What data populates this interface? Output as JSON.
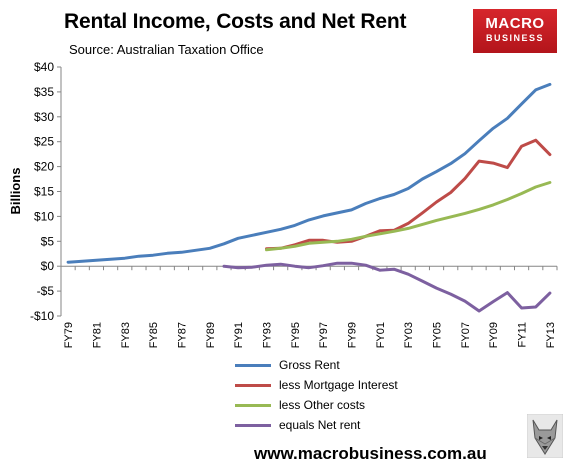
{
  "header": {
    "title": "Rental Income, Costs and Net Rent",
    "subtitle": "Source: Australian Taxation Office"
  },
  "logo": {
    "line1": "MACRO",
    "line2": "BUSINESS"
  },
  "footer": {
    "website": "www.macrobusiness.com.au"
  },
  "chart_data": {
    "type": "line",
    "ylabel": "Billions",
    "xlabel": "",
    "ylim": [
      -10,
      40
    ],
    "yticks": [
      -10,
      -5,
      0,
      5,
      10,
      15,
      20,
      25,
      30,
      35,
      40
    ],
    "ytick_labels": [
      "-$10",
      "-$5",
      "$0",
      "$5",
      "$10",
      "$15",
      "$20",
      "$25",
      "$30",
      "$35",
      "$40"
    ],
    "categories": [
      "FY79",
      "FY80",
      "FY81",
      "FY82",
      "FY83",
      "FY84",
      "FY85",
      "FY86",
      "FY87",
      "FY88",
      "FY89",
      "FY90",
      "FY91",
      "FY92",
      "FY93",
      "FY94",
      "FY95",
      "FY96",
      "FY97",
      "FY98",
      "FY99",
      "FY00",
      "FY01",
      "FY02",
      "FY03",
      "FY04",
      "FY05",
      "FY06",
      "FY07",
      "FY08",
      "FY09",
      "FY10",
      "FY11",
      "FY12",
      "FY13"
    ],
    "tick_labels_shown": [
      "FY79",
      "FY81",
      "FY83",
      "FY85",
      "FY87",
      "FY89",
      "FY91",
      "FY93",
      "FY95",
      "FY97",
      "FY99",
      "FY01",
      "FY03",
      "FY05",
      "FY07",
      "FY09",
      "FY11",
      "FY13"
    ],
    "grid": false,
    "legend": "bottom-center",
    "series": [
      {
        "name": "Gross Rent",
        "color": "#4a7ebb",
        "values": [
          0.8,
          1.0,
          1.2,
          1.4,
          1.6,
          2.0,
          2.2,
          2.6,
          2.8,
          3.2,
          3.6,
          4.5,
          5.6,
          6.2,
          6.8,
          7.4,
          8.2,
          9.3,
          10.1,
          10.7,
          11.3,
          12.6,
          13.6,
          14.4,
          15.6,
          17.5,
          19.0,
          20.6,
          22.6,
          25.2,
          27.7,
          29.7,
          32.6,
          35.4,
          36.5
        ]
      },
      {
        "name": "less Mortgage Interest",
        "color": "#be4b48",
        "values": [
          null,
          null,
          null,
          null,
          null,
          null,
          null,
          null,
          null,
          null,
          null,
          null,
          null,
          null,
          3.5,
          3.6,
          4.3,
          5.2,
          5.2,
          4.8,
          5.0,
          6.0,
          7.1,
          7.2,
          8.6,
          10.7,
          12.9,
          14.8,
          17.6,
          21.1,
          20.7,
          19.8,
          24.1,
          25.3,
          22.4
        ]
      },
      {
        "name": "less Other costs",
        "color": "#98b954",
        "values": [
          null,
          null,
          null,
          null,
          null,
          null,
          null,
          null,
          null,
          null,
          null,
          null,
          null,
          null,
          3.3,
          3.6,
          4.0,
          4.6,
          4.8,
          5.0,
          5.4,
          6.0,
          6.5,
          7.0,
          7.6,
          8.4,
          9.2,
          9.9,
          10.6,
          11.4,
          12.3,
          13.4,
          14.6,
          15.9,
          16.8
        ]
      },
      {
        "name": "equals Net rent",
        "color": "#7d60a0",
        "values": [
          null,
          null,
          null,
          null,
          null,
          null,
          null,
          null,
          null,
          null,
          null,
          0.0,
          -0.3,
          -0.2,
          0.2,
          0.4,
          0.0,
          -0.3,
          0.1,
          0.6,
          0.6,
          0.2,
          -0.8,
          -0.6,
          -1.6,
          -3.0,
          -4.4,
          -5.6,
          -7.0,
          -9.0,
          -7.1,
          -5.3,
          -8.4,
          -8.2,
          -5.4
        ]
      }
    ]
  }
}
